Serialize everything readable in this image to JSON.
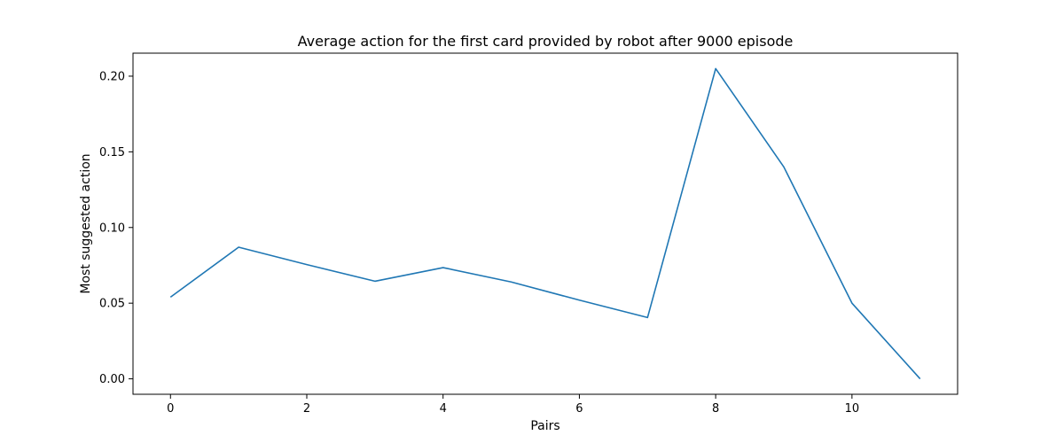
{
  "chart_data": {
    "type": "line",
    "title": "Average action for the first card provided by robot after 9000 episode",
    "xlabel": "Pairs",
    "ylabel": "Most suggested action",
    "xlim": [
      -0.55,
      11.55
    ],
    "ylim": [
      -0.0102,
      0.2152
    ],
    "xticks": [
      0,
      2,
      4,
      6,
      8,
      10
    ],
    "yticks": [
      0.0,
      0.05,
      0.1,
      0.15,
      0.2
    ],
    "ytick_labels": [
      "0.00",
      "0.05",
      "0.10",
      "0.15",
      "0.20"
    ],
    "grid": false,
    "line_color": "#1f77b4",
    "series": [
      {
        "x": [
          0,
          1,
          2,
          3,
          4,
          5,
          6,
          7,
          8,
          9,
          10,
          11
        ],
        "values": [
          0.054,
          0.087,
          0.0755,
          0.0645,
          0.0735,
          0.064,
          0.052,
          0.0405,
          0.205,
          0.14,
          0.05,
          0.0
        ]
      }
    ]
  }
}
